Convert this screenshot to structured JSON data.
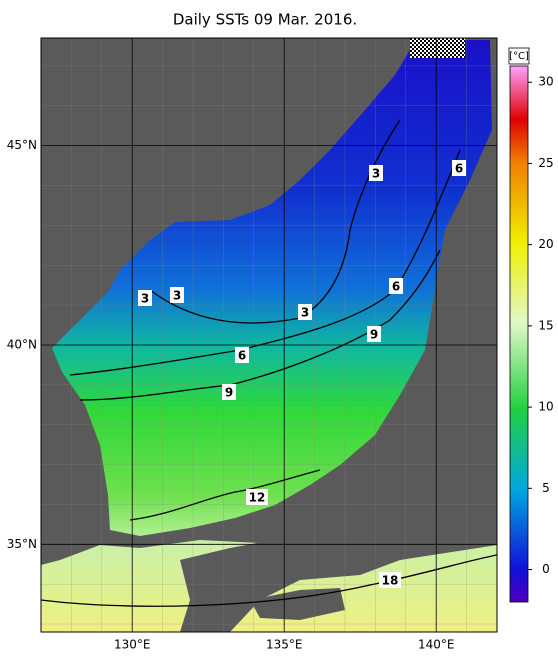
{
  "title": "Daily SSTs 09 Mar. 2016.",
  "map": {
    "lon_range": [
      127,
      142
    ],
    "lat_range": [
      32.8,
      47.7
    ],
    "lon_labels": [
      {
        "value": 130,
        "label": "130°E"
      },
      {
        "value": 135,
        "label": "135°E"
      },
      {
        "value": 140,
        "label": "140°E"
      }
    ],
    "lat_labels": [
      {
        "value": 45,
        "label": "45°N"
      },
      {
        "value": 40,
        "label": "40°N"
      },
      {
        "value": 35,
        "label": "35°N"
      }
    ],
    "contour_labels": [
      3,
      3,
      3,
      3,
      6,
      6,
      6,
      9,
      9,
      12,
      18
    ]
  },
  "colorbar": {
    "unit": "[°C]",
    "range": [
      -2,
      31
    ],
    "ticks": [
      0,
      5,
      10,
      15,
      20,
      25,
      30
    ]
  }
}
